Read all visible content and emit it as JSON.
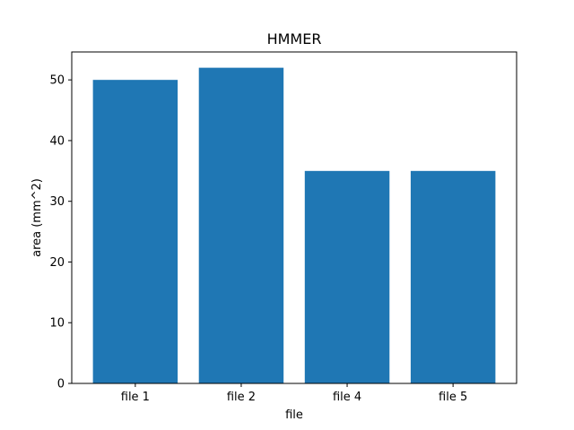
{
  "chart_data": {
    "type": "bar",
    "title": "HMMER",
    "xlabel": "file",
    "ylabel": "area (mm^2)",
    "categories": [
      "file 1",
      "file 2",
      "file 4",
      "file 5"
    ],
    "values": [
      50,
      52,
      35,
      35
    ],
    "ylim": [
      0,
      54.6
    ],
    "yticks": [
      0,
      10,
      20,
      30,
      40,
      50
    ],
    "grid": false,
    "legend": "none",
    "colors": {
      "bar": "#1f77b4",
      "axes": "#000000",
      "background": "#ffffff"
    }
  }
}
